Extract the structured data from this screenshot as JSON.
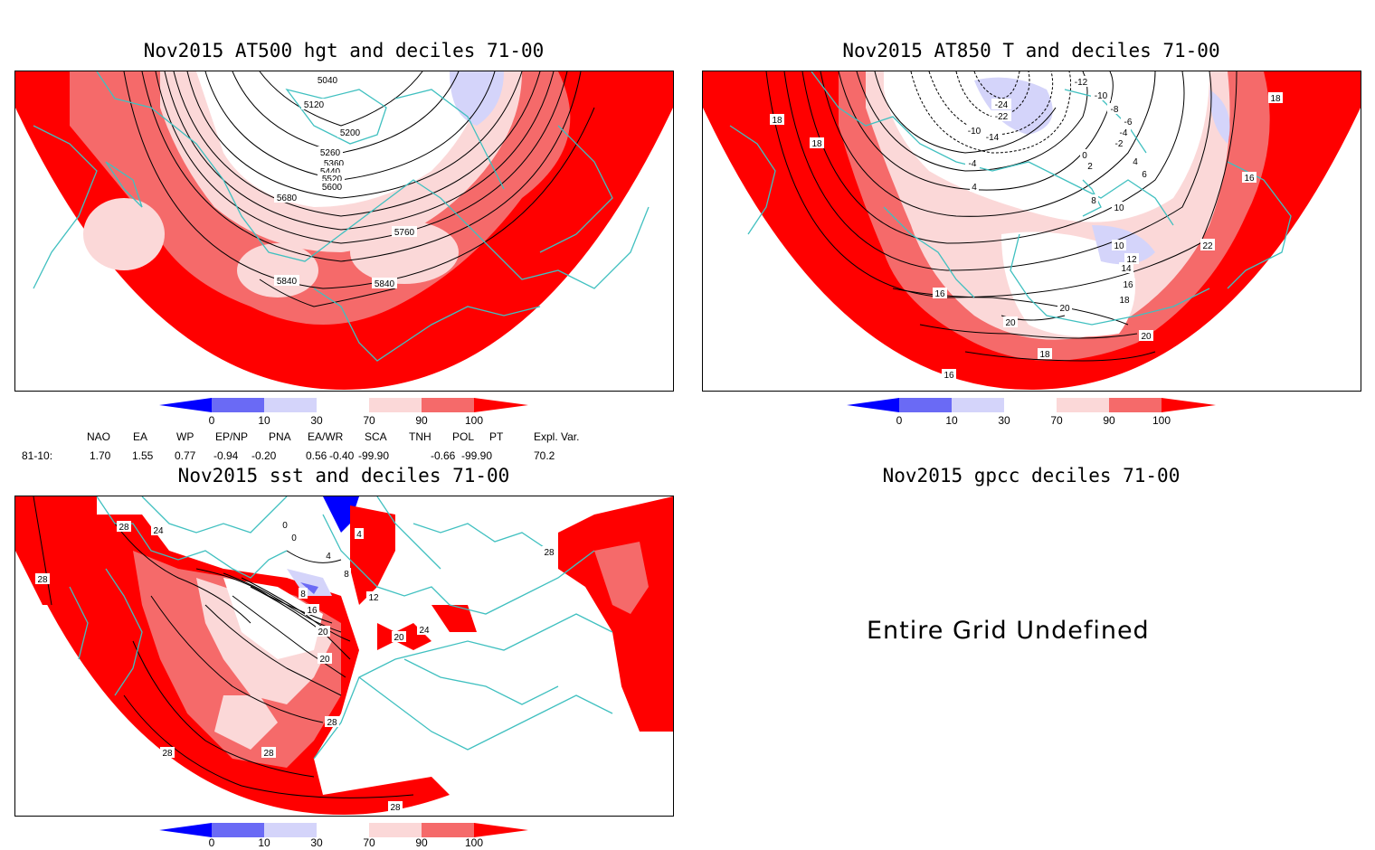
{
  "panels": [
    {
      "title": "Nov2015 AT500 hgt and deciles 71-00",
      "contour_labels": [
        "5040",
        "5120",
        "5200",
        "5260",
        "5360",
        "5440",
        "5520",
        "5600",
        "5680",
        "5760",
        "5840",
        "5840"
      ]
    },
    {
      "title": "Nov2015 AT850 T and deciles 71-00",
      "contour_labels": [
        "-12",
        "-10",
        "-8",
        "-6",
        "-4",
        "-24",
        "-22",
        "-10",
        "-14",
        "-2",
        "0",
        "2",
        "4",
        "6",
        "-4",
        "4",
        "8",
        "10",
        "10",
        "12",
        "14",
        "16",
        "18",
        "20",
        "22",
        "20",
        "16",
        "20",
        "18",
        "16",
        "18",
        "18",
        "18",
        "16",
        "20"
      ]
    },
    {
      "title": "Nov2015 sst and deciles 71-00",
      "contour_labels": [
        "28",
        "24",
        "28",
        "0",
        "0",
        "4",
        "4",
        "8",
        "8",
        "12",
        "16",
        "20",
        "20",
        "20",
        "24",
        "28",
        "28",
        "28",
        "28",
        "28"
      ]
    },
    {
      "title": "Nov2015 gpcc deciles 71-00",
      "message": "Entire Grid Undefined"
    }
  ],
  "colorbar": {
    "ticks": [
      "0",
      "10",
      "30",
      "70",
      "90",
      "100"
    ],
    "colors": {
      "blue_dark": "#0000ff",
      "blue_mid": "#6a6af5",
      "blue_light": "#d4d4fa",
      "white": "#ffffff",
      "red_light": "#fbd8d8",
      "red_mid": "#f56a6a",
      "red_dark": "#ff0000"
    }
  },
  "teleconnection": {
    "headers": [
      "NAO",
      "EA",
      "WP",
      "EP/NP",
      "PNA",
      "EA/WR",
      "SCA",
      "TNH",
      "POL",
      "PT",
      "Expl. Var."
    ],
    "row_label": "81-10:",
    "values": [
      "1.70",
      "1.55",
      "0.77",
      "-0.94",
      "-0.20",
      "0.56",
      "-0.40",
      "-99.90",
      "-0.66",
      "-99.90",
      "70.2"
    ]
  },
  "colors": {
    "coast": "#40c0c0",
    "contour": "#000000",
    "red": "#ff0000",
    "redmid": "#f56a6a",
    "redlight": "#fbd8d8",
    "bluelight": "#d4d4fa"
  }
}
